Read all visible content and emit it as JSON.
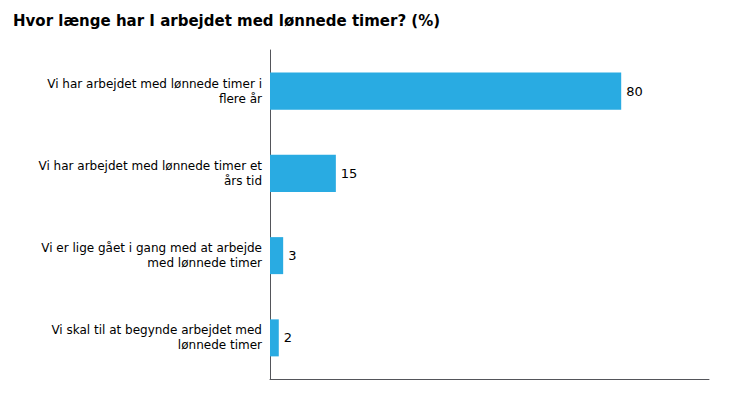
{
  "chart_data": {
    "type": "bar",
    "title": "Hvor længe har I arbejdet med lønnede timer? (%)",
    "categories": [
      "Vi skal til at begynde arbejdet med\nlønnede timer",
      "Vi er lige gået i gang med at arbejde\nmed lønnede timer",
      "Vi har arbejdet med lønnede timer et\nårs tid",
      "Vi har arbejdet med lønnede timer i\nflere år"
    ],
    "values": [
      2,
      3,
      15,
      80
    ],
    "color": "#29ABE2",
    "orientation": "horizontal",
    "xlim": [
      0,
      100
    ],
    "grid": false,
    "data_labels": true,
    "tick_labels": "y"
  }
}
